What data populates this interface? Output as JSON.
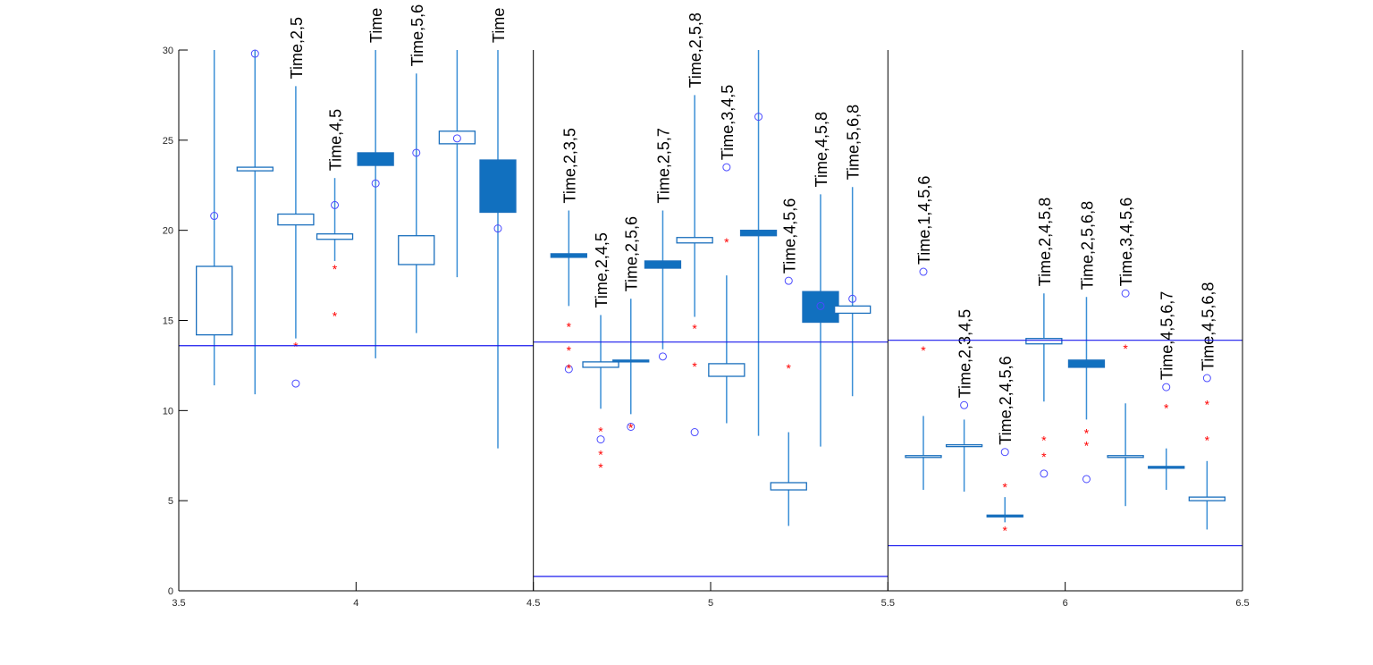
{
  "chart_data": {
    "type": "box",
    "title": "",
    "xlabel": "",
    "ylabel": "",
    "xlim": [
      3.5,
      6.5
    ],
    "ylim": [
      0,
      30
    ],
    "xticks": [
      "3.5",
      "4",
      "4.5",
      "5",
      "5.5",
      "6",
      "6.5"
    ],
    "yticks": [
      "0",
      "5",
      "10",
      "15",
      "20",
      "25",
      "30"
    ],
    "grid": false,
    "colors": {
      "box": "#1a6fbd",
      "fill": "#1170bf",
      "whisker": "#3b8fd6",
      "circle": "#4a4aff",
      "star": "#ff0000",
      "refline": "#1a1aee",
      "axis": "#000000"
    },
    "panels": [
      {
        "xrange": [
          3.5,
          4.5
        ],
        "reference_lines": [
          13.6
        ]
      },
      {
        "xrange": [
          4.5,
          5.5
        ],
        "reference_lines": [
          13.8,
          0.8
        ]
      },
      {
        "xrange": [
          5.5,
          6.5
        ],
        "reference_lines": [
          13.9,
          2.5
        ]
      }
    ],
    "boxes": [
      {
        "x": 3.6,
        "label": "",
        "filled": false,
        "q1": 14.2,
        "q3": 18.0,
        "wlo": 11.4,
        "whi": 30,
        "circle": 20.8,
        "stars": []
      },
      {
        "x": 3.715,
        "label": "",
        "filled": false,
        "q1": 23.3,
        "q3": 23.5,
        "wlo": 10.9,
        "whi": 30,
        "circle": 29.8,
        "stars": []
      },
      {
        "x": 3.83,
        "label": "Time,2,5",
        "filled": false,
        "q1": 20.3,
        "q3": 20.9,
        "wlo": 14.0,
        "whi": 28.0,
        "circle": 11.5,
        "stars": [
          13.6
        ]
      },
      {
        "x": 3.94,
        "label": "Time,4,5",
        "filled": false,
        "q1": 19.5,
        "q3": 19.8,
        "wlo": 18.3,
        "whi": 22.9,
        "circle": 21.4,
        "stars": [
          17.9,
          15.3
        ]
      },
      {
        "x": 4.055,
        "label": "Time",
        "filled": true,
        "q1": 23.6,
        "q3": 24.3,
        "wlo": 12.9,
        "whi": 30,
        "circle": 22.6,
        "stars": []
      },
      {
        "x": 4.17,
        "label": "Time,5,6",
        "filled": false,
        "q1": 18.1,
        "q3": 19.7,
        "wlo": 14.3,
        "whi": 28.7,
        "circle": 24.3,
        "stars": []
      },
      {
        "x": 4.285,
        "label": "",
        "filled": false,
        "q1": 24.8,
        "q3": 25.5,
        "wlo": 17.4,
        "whi": 30,
        "circle": 25.1,
        "stars": []
      },
      {
        "x": 4.4,
        "label": "Time",
        "filled": true,
        "q1": 21.0,
        "q3": 23.9,
        "wlo": 7.9,
        "whi": 30,
        "circle": 20.1,
        "stars": []
      },
      {
        "x": 4.6,
        "label": "Time,2,3,5",
        "filled": true,
        "q1": 18.5,
        "q3": 18.7,
        "wlo": 15.8,
        "whi": 21.1,
        "circle": 12.3,
        "stars": [
          14.7,
          13.4,
          12.4
        ]
      },
      {
        "x": 4.69,
        "label": "Time,2,4,5",
        "filled": false,
        "q1": 12.4,
        "q3": 12.7,
        "wlo": 10.1,
        "whi": 15.3,
        "circle": 8.4,
        "stars": [
          8.9,
          7.6,
          6.9
        ]
      },
      {
        "x": 4.775,
        "label": "Time,2,5,6",
        "filled": true,
        "q1": 12.7,
        "q3": 12.8,
        "wlo": 9.8,
        "whi": 16.2,
        "circle": 9.1,
        "stars": [
          9.1
        ]
      },
      {
        "x": 4.865,
        "label": "Time,2,5,7",
        "filled": true,
        "q1": 17.9,
        "q3": 18.3,
        "wlo": 13.4,
        "whi": 21.1,
        "circle": 13.0,
        "stars": []
      },
      {
        "x": 4.955,
        "label": "Time,2,5,8",
        "filled": false,
        "q1": 19.3,
        "q3": 19.6,
        "wlo": 15.2,
        "whi": 27.5,
        "circle": 8.8,
        "stars": [
          14.6,
          12.5
        ]
      },
      {
        "x": 5.045,
        "label": "Time,3,4,5",
        "filled": false,
        "q1": 11.9,
        "q3": 12.6,
        "wlo": 9.3,
        "whi": 17.5,
        "circle": 23.5,
        "stars": [
          19.4
        ]
      },
      {
        "x": 5.135,
        "label": "",
        "filled": true,
        "q1": 19.7,
        "q3": 20.0,
        "wlo": 8.6,
        "whi": 30,
        "circle": 26.3,
        "stars": []
      },
      {
        "x": 5.22,
        "label": "Time,4,5,6",
        "filled": false,
        "q1": 5.6,
        "q3": 6.0,
        "wlo": 3.6,
        "whi": 8.8,
        "circle": 17.2,
        "stars": [
          12.4
        ]
      },
      {
        "x": 5.31,
        "label": "Time,4,5,8",
        "filled": true,
        "q1": 14.9,
        "q3": 16.6,
        "wlo": 8.0,
        "whi": 22.0,
        "circle": 15.8,
        "stars": []
      },
      {
        "x": 5.4,
        "label": "Time,5,6,8",
        "filled": false,
        "q1": 15.4,
        "q3": 15.8,
        "wlo": 10.8,
        "whi": 22.4,
        "circle": 16.2,
        "stars": []
      },
      {
        "x": 5.6,
        "label": "Time,1,4,5,6",
        "filled": false,
        "q1": 7.4,
        "q3": 7.5,
        "wlo": 5.6,
        "whi": 9.7,
        "circle": 17.7,
        "stars": [
          13.4
        ]
      },
      {
        "x": 5.715,
        "label": "Time,2,3,4,5",
        "filled": false,
        "q1": 8.1,
        "q3": 8.1,
        "wlo": 5.5,
        "whi": 9.5,
        "circle": 10.3,
        "stars": []
      },
      {
        "x": 5.83,
        "label": "Time,2,4,5,6",
        "filled": true,
        "q1": 4.2,
        "q3": 4.2,
        "wlo": 3.8,
        "whi": 5.2,
        "circle": 7.7,
        "stars": [
          5.8,
          3.4
        ]
      },
      {
        "x": 5.94,
        "label": "Time,2,4,5,8",
        "filled": false,
        "q1": 13.7,
        "q3": 14.0,
        "wlo": 10.5,
        "whi": 16.5,
        "circle": 6.5,
        "stars": [
          8.4,
          7.5
        ]
      },
      {
        "x": 6.06,
        "label": "Time,2,5,6,8",
        "filled": true,
        "q1": 12.4,
        "q3": 12.8,
        "wlo": 9.5,
        "whi": 16.3,
        "circle": 6.2,
        "stars": [
          8.8,
          8.1
        ]
      },
      {
        "x": 6.17,
        "label": "Time,3,4,5,6",
        "filled": false,
        "q1": 7.4,
        "q3": 7.5,
        "wlo": 4.7,
        "whi": 10.4,
        "circle": 16.5,
        "stars": [
          13.5
        ]
      },
      {
        "x": 6.285,
        "label": "Time,4,5,6,7",
        "filled": true,
        "q1": 6.8,
        "q3": 6.9,
        "wlo": 5.6,
        "whi": 7.9,
        "circle": 11.3,
        "stars": [
          10.2
        ]
      },
      {
        "x": 6.4,
        "label": "Time,4,5,6,8",
        "filled": false,
        "q1": 5.0,
        "q3": 5.2,
        "wlo": 3.4,
        "whi": 7.2,
        "circle": 11.8,
        "stars": [
          10.4,
          8.4
        ]
      }
    ]
  }
}
